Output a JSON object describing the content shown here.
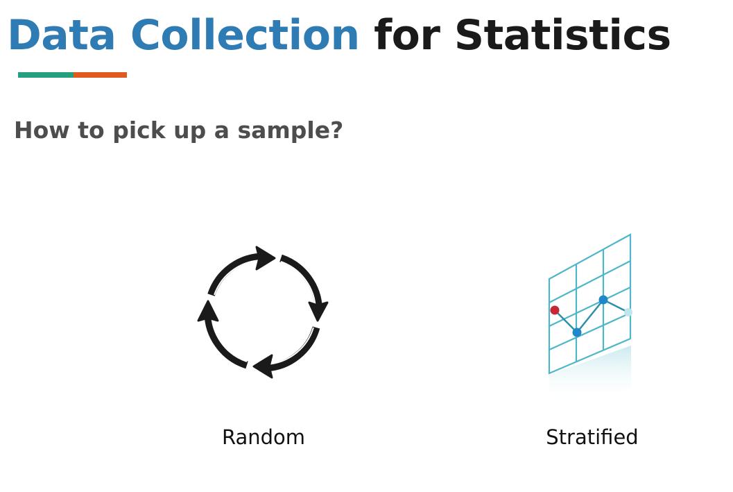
{
  "slide": {
    "title_accent": "Data Collection",
    "title_rest": "for Statistics",
    "subtitle": "How to pick up a sample?",
    "colors": {
      "title_accent": "#2e7cb3",
      "underline_left": "#25a07f",
      "underline_right": "#e0591e",
      "grid": "#4fb6c9",
      "point_red": "#c62838",
      "point_blue": "#1e88c9"
    },
    "options": [
      {
        "label": "Random",
        "icon": "circular-arrows-icon"
      },
      {
        "label": "Stratified",
        "icon": "perspective-grid-chart-icon"
      }
    ]
  }
}
